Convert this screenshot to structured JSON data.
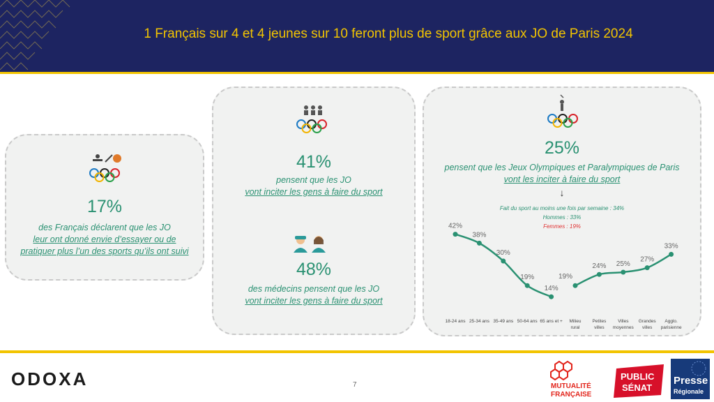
{
  "header": {
    "title": "1 Français sur 4 et 4 jeunes sur 10 feront plus de sport grâce aux JO de Paris 2024"
  },
  "card1": {
    "value": "17%",
    "line1": "des Français déclarent que les JO",
    "line2": "leur ont donné envie d’essayer ou de",
    "line3": "pratiquer plus l’un des sports qu’ils ont suivi"
  },
  "card2": {
    "stat1": {
      "value": "41%",
      "line1": "pensent que les JO",
      "line2": "vont inciter les gens à faire du sport"
    },
    "stat2": {
      "value": "48%",
      "line1": "des médecins pensent que les JO",
      "line2": "vont inciter les gens à faire du sport"
    }
  },
  "card3": {
    "value": "25%",
    "line1": "pensent que les Jeux Olympiques et Paralympiques de Paris",
    "line2": "vont les inciter à faire du sport",
    "arrow": "↓",
    "note1": "Fait du sport au moins une fois par semaine : 34%",
    "note2": "Hommes : 33%",
    "note3": "Femmes : 19%"
  },
  "chart_data": {
    "type": "line",
    "title": "",
    "xlabel": "",
    "ylabel": "",
    "categories": [
      "18-24 ans",
      "25-34 ans",
      "35-49 ans",
      "50-64 ans",
      "65 ans et +",
      "Milieu rural",
      "Petites villes",
      "Villes moyennes",
      "Grandes villes",
      "Agglo. parisienne"
    ],
    "series": [
      {
        "values": [
          42,
          38,
          30,
          19,
          14,
          null,
          null,
          null,
          null,
          null
        ]
      },
      {
        "values": [
          null,
          null,
          null,
          null,
          null,
          19,
          24,
          25,
          27,
          33
        ]
      }
    ],
    "data_labels": [
      "42%",
      "38%",
      "30%",
      "19%",
      "14%",
      "19%",
      "24%",
      "25%",
      "27%",
      "33%"
    ],
    "ylim": [
      10,
      45
    ],
    "grid": false,
    "colors": {
      "line": "#2a9172"
    }
  },
  "footer": {
    "logo": "ODOXA",
    "page": "7",
    "partner1_line1": "MUTUALITÉ",
    "partner1_line2": "FRANÇAISE",
    "partner2_line1": "PUBLIC",
    "partner2_line2": "SÉNAT",
    "partner3_line1": "Presse",
    "partner3_line2": "Régionale"
  },
  "colors": {
    "navy": "#1d2461",
    "gold": "#f2c400",
    "green": "#2a9172",
    "red": "#e03030"
  }
}
